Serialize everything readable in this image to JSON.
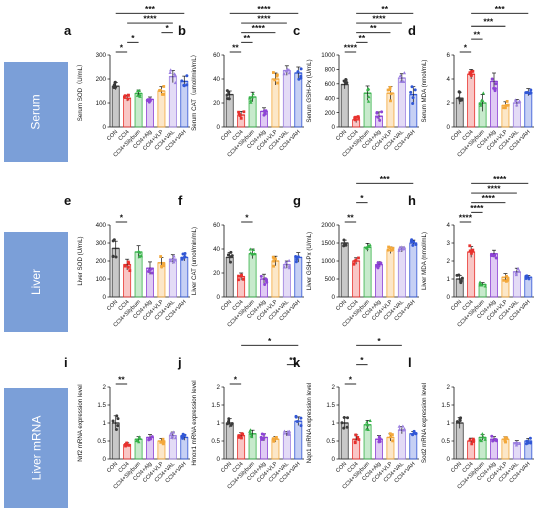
{
  "rows": [
    {
      "tag": "Serum"
    },
    {
      "tag": "Liver"
    },
    {
      "tag": "Liver mRNA"
    }
  ],
  "groups": [
    "CON",
    "CCl4",
    "CCl4+Silybum",
    "CCl4+Alg",
    "CCl4+VLP",
    "CCl4+VAL",
    "CCl4+VAH"
  ],
  "palette": [
    "#3a3a3a",
    "#e8312d",
    "#36b249",
    "#8e44d6",
    "#f3a83b",
    "#9b7fe0",
    "#3157d6"
  ],
  "chart_data": [
    {
      "type": "bar",
      "panel": "a",
      "ylabel": "Serum SOD（U/mL）",
      "ylim": [
        0,
        300
      ],
      "yticks": [
        0,
        100,
        200,
        300
      ],
      "values": [
        170,
        120,
        140,
        115,
        150,
        210,
        190
      ],
      "errors": [
        15,
        12,
        14,
        10,
        18,
        25,
        22
      ],
      "sig": [
        {
          "p": 0,
          "q": 1,
          "label": "*"
        },
        {
          "p": 1,
          "q": 2,
          "label": "*"
        },
        {
          "p": 4,
          "q": 5,
          "label": "*"
        },
        {
          "p": 1,
          "q": 5,
          "label": "****"
        },
        {
          "p": 0,
          "q": 6,
          "label": "***"
        }
      ]
    },
    {
      "type": "bar",
      "panel": "b",
      "ylabel": "Serum CAT（umol/min/mL）",
      "ylim": [
        0,
        60
      ],
      "yticks": [
        0,
        20,
        40,
        60
      ],
      "values": [
        27,
        10,
        25,
        13,
        40,
        47,
        45
      ],
      "errors": [
        3,
        3,
        4,
        3,
        5,
        4,
        5
      ],
      "sig": [
        {
          "p": 0,
          "q": 1,
          "label": "**"
        },
        {
          "p": 1,
          "q": 2,
          "label": "**"
        },
        {
          "p": 1,
          "q": 4,
          "label": "****"
        },
        {
          "p": 1,
          "q": 5,
          "label": "****"
        },
        {
          "p": 0,
          "q": 6,
          "label": "****"
        }
      ]
    },
    {
      "type": "bar",
      "panel": "c",
      "ylabel": "Serum GSH-Px (U/mL)",
      "ylim": [
        0,
        1000
      ],
      "yticks": [
        0,
        200,
        400,
        600,
        800,
        1000
      ],
      "values": [
        590,
        100,
        470,
        150,
        470,
        680,
        450
      ],
      "errors": [
        60,
        40,
        100,
        60,
        90,
        60,
        110
      ],
      "sig": [
        {
          "p": 0,
          "q": 1,
          "label": "****"
        },
        {
          "p": 1,
          "q": 2,
          "label": "**"
        },
        {
          "p": 1,
          "q": 4,
          "label": "**"
        },
        {
          "p": 1,
          "q": 5,
          "label": "****"
        },
        {
          "p": 1,
          "q": 6,
          "label": "**"
        }
      ]
    },
    {
      "type": "bar",
      "panel": "d",
      "ylabel": "Serum MDA (nmol/mL)",
      "ylim": [
        0,
        6
      ],
      "yticks": [
        0,
        2,
        4,
        6
      ],
      "values": [
        2.4,
        4.4,
        2.0,
        3.8,
        1.8,
        2.0,
        2.9
      ],
      "errors": [
        0.5,
        0.4,
        0.7,
        0.7,
        0.3,
        0.3,
        0.3
      ],
      "sig": [
        {
          "p": 0,
          "q": 1,
          "label": "*"
        },
        {
          "p": 1,
          "q": 2,
          "label": "**"
        },
        {
          "p": 1,
          "q": 4,
          "label": "***"
        },
        {
          "p": 1,
          "q": 6,
          "label": "***"
        }
      ]
    },
    {
      "type": "bar",
      "panel": "e",
      "ylabel": "Liver SOD (U/mL)",
      "ylim": [
        0,
        400
      ],
      "yticks": [
        0,
        100,
        200,
        300,
        400
      ],
      "values": [
        270,
        180,
        250,
        160,
        190,
        210,
        220
      ],
      "errors": [
        40,
        30,
        35,
        35,
        30,
        25,
        20
      ],
      "sig": [
        {
          "p": 0,
          "q": 1,
          "label": "*"
        }
      ]
    },
    {
      "type": "bar",
      "panel": "f",
      "ylabel": "Liver CAT (umol/min/mL)",
      "ylim": [
        0,
        60
      ],
      "yticks": [
        0,
        20,
        40,
        60
      ],
      "values": [
        33,
        17,
        36,
        15,
        30,
        27,
        33
      ],
      "errors": [
        4,
        3,
        4,
        4,
        4,
        3,
        4
      ],
      "sig": [
        {
          "p": 1,
          "q": 2,
          "label": "*"
        }
      ]
    },
    {
      "type": "bar",
      "panel": "g",
      "ylabel": "Liver GSH-Px (U/mL)",
      "ylim": [
        0,
        2000
      ],
      "yticks": [
        0,
        500,
        1000,
        1500,
        2000
      ],
      "values": [
        1500,
        1000,
        1380,
        900,
        1300,
        1320,
        1500
      ],
      "errors": [
        80,
        90,
        110,
        80,
        90,
        70,
        80
      ],
      "sig": [
        {
          "p": 0,
          "q": 1,
          "label": "**"
        },
        {
          "p": 1,
          "q": 2,
          "label": "*"
        },
        {
          "p": 1,
          "q": 6,
          "label": "***"
        }
      ]
    },
    {
      "type": "bar",
      "panel": "h",
      "ylabel": "Liver MDA (nmol/mL)",
      "ylim": [
        0,
        4
      ],
      "yticks": [
        0,
        1,
        2,
        3,
        4
      ],
      "values": [
        1.0,
        2.5,
        0.7,
        2.4,
        1.1,
        1.4,
        1.1
      ],
      "errors": [
        0.2,
        0.3,
        0.1,
        0.2,
        0.2,
        0.2,
        0.1
      ],
      "sig": [
        {
          "p": 0,
          "q": 1,
          "label": "****"
        },
        {
          "p": 1,
          "q": 2,
          "label": "****"
        },
        {
          "p": 1,
          "q": 4,
          "label": "****"
        },
        {
          "p": 1,
          "q": 5,
          "label": "****"
        },
        {
          "p": 1,
          "q": 6,
          "label": "****"
        }
      ]
    },
    {
      "type": "bar",
      "panel": "i",
      "ylabel": "Nrf2 mRNA expression level",
      "ylim": [
        0,
        2
      ],
      "yticks": [
        0.0,
        0.5,
        1.0,
        1.5,
        2.0
      ],
      "values": [
        1.0,
        0.4,
        0.55,
        0.6,
        0.5,
        0.65,
        0.6
      ],
      "errors": [
        0.2,
        0.05,
        0.07,
        0.08,
        0.07,
        0.1,
        0.08
      ],
      "sig": [
        {
          "p": 0,
          "q": 1,
          "label": "**"
        }
      ]
    },
    {
      "type": "bar",
      "panel": "j",
      "ylabel": "Hmox1 mRNA expression level",
      "ylim": [
        0,
        2
      ],
      "yticks": [
        0.0,
        0.5,
        1.0,
        1.5,
        2.0
      ],
      "values": [
        1.0,
        0.65,
        0.7,
        0.6,
        0.55,
        0.7,
        1.05
      ],
      "errors": [
        0.12,
        0.08,
        0.1,
        0.1,
        0.07,
        0.06,
        0.12
      ],
      "sig": [
        {
          "p": 0,
          "q": 1,
          "label": "*"
        },
        {
          "p": 5,
          "q": 6,
          "label": "**"
        },
        {
          "p": 1,
          "q": 6,
          "label": "*"
        }
      ]
    },
    {
      "type": "bar",
      "panel": "k",
      "ylabel": "Nqo1 mRNA expression level",
      "ylim": [
        0,
        2
      ],
      "yticks": [
        0.0,
        0.5,
        1.0,
        1.5,
        2.0
      ],
      "values": [
        1.0,
        0.55,
        0.95,
        0.55,
        0.6,
        0.8,
        0.7
      ],
      "errors": [
        0.15,
        0.12,
        0.12,
        0.1,
        0.1,
        0.1,
        0.06
      ],
      "sig": [
        {
          "p": 0,
          "q": 1,
          "label": "*"
        },
        {
          "p": 1,
          "q": 2,
          "label": "*"
        },
        {
          "p": 1,
          "q": 5,
          "label": "*"
        }
      ]
    },
    {
      "type": "bar",
      "panel": "l",
      "ylabel": "Sod2 mRNA expression level",
      "ylim": [
        0,
        2
      ],
      "yticks": [
        0.0,
        0.5,
        1.0,
        1.5,
        2.0
      ],
      "values": [
        1.0,
        0.5,
        0.6,
        0.55,
        0.55,
        0.45,
        0.5
      ],
      "errors": [
        0.15,
        0.08,
        0.08,
        0.07,
        0.07,
        0.06,
        0.07
      ],
      "sig": []
    }
  ]
}
